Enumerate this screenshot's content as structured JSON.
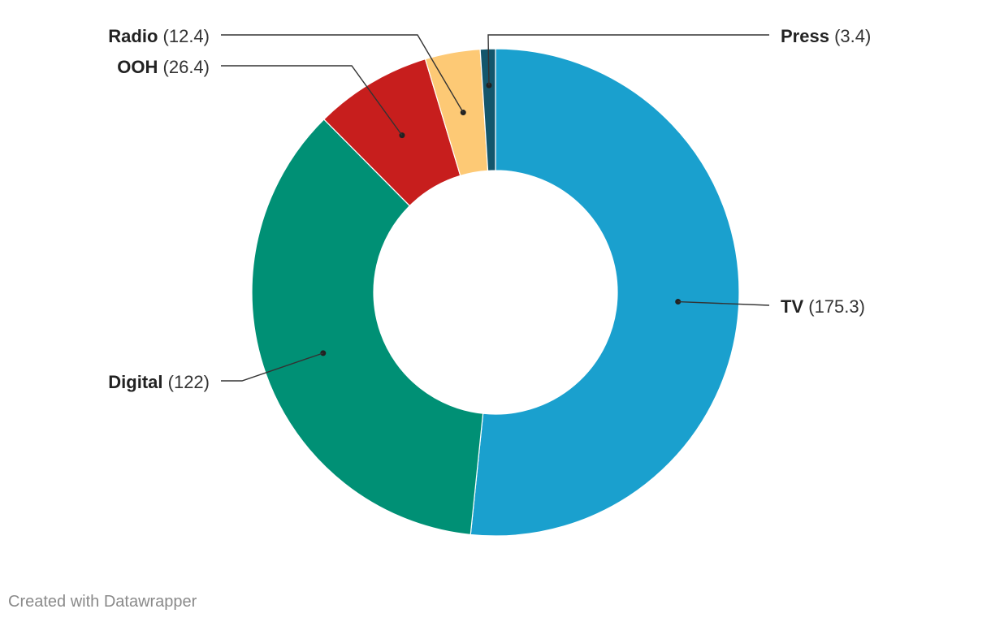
{
  "chart_data": {
    "type": "pie",
    "donut": true,
    "title": "",
    "slices": [
      {
        "label": "TV",
        "value": 175.3,
        "color": "#1aa0ce"
      },
      {
        "label": "Digital",
        "value": 122,
        "color": "#009075"
      },
      {
        "label": "OOH",
        "value": 26.4,
        "color": "#c71e1d"
      },
      {
        "label": "Radio",
        "value": 12.4,
        "color": "#fdc975"
      },
      {
        "label": "Press",
        "value": 3.4,
        "color": "#13566c"
      }
    ],
    "value_labels": [
      "(175.3)",
      "(122)",
      "(26.4)",
      "(12.4)",
      "(3.4)"
    ]
  },
  "footer": {
    "credit": "Created with Datawrapper"
  }
}
